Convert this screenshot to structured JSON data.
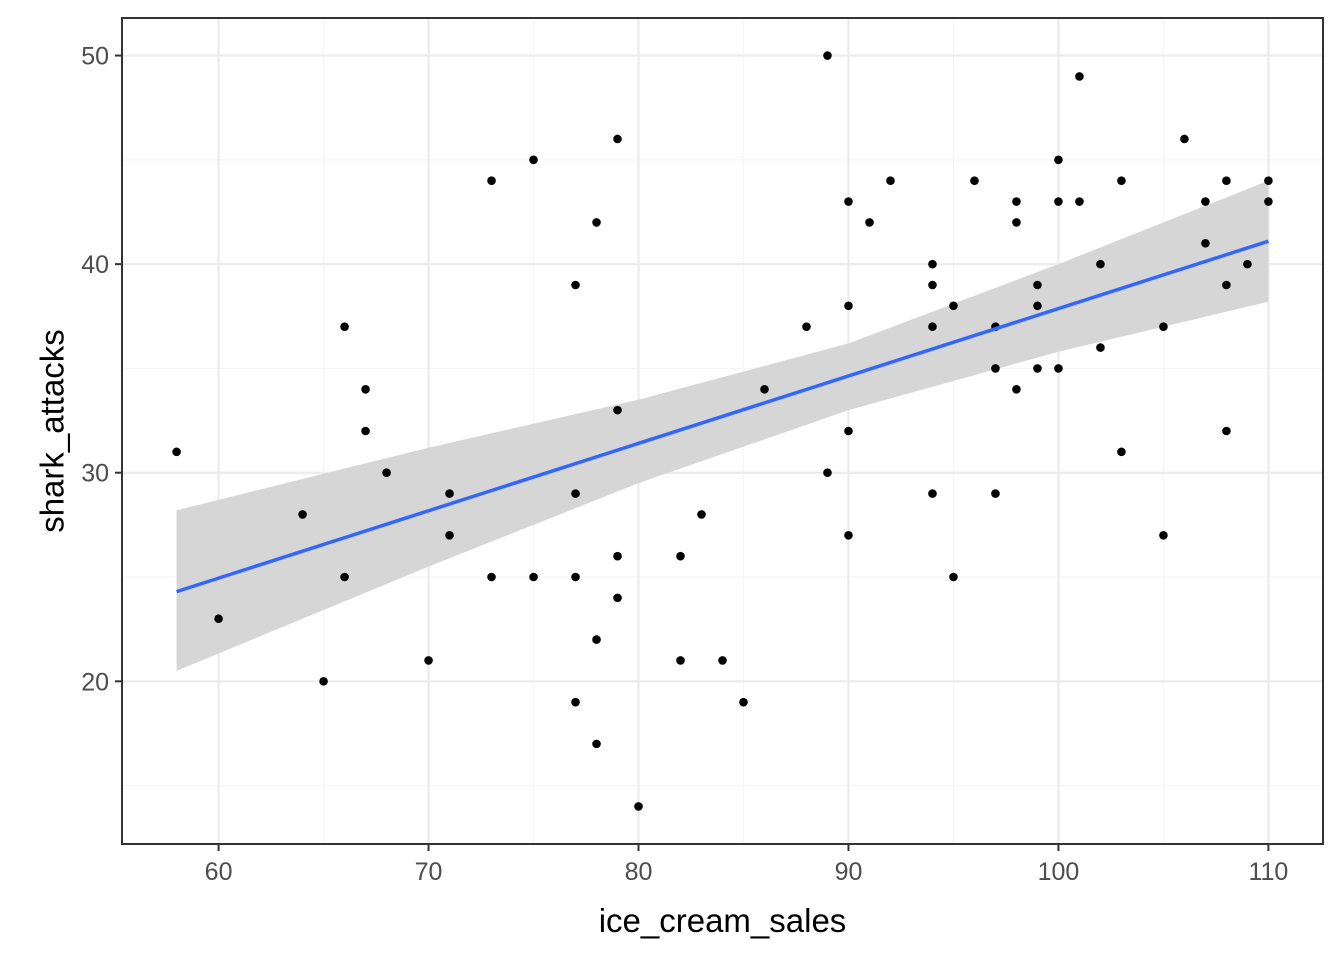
{
  "chart_data": {
    "type": "scatter",
    "xlabel": "ice_cream_sales",
    "ylabel": "shark_attacks",
    "xlim": [
      55.4,
      112.6
    ],
    "ylim": [
      12.2,
      51.8
    ],
    "x_ticks": [
      60,
      70,
      80,
      90,
      100,
      110
    ],
    "x_tick_labels": [
      "60",
      "70",
      "80",
      "90",
      "100",
      "110"
    ],
    "y_ticks": [
      20,
      30,
      40,
      50
    ],
    "y_tick_labels": [
      "20",
      "30",
      "40",
      "50"
    ],
    "grid": true,
    "points": [
      [
        58,
        31
      ],
      [
        60,
        23
      ],
      [
        64,
        28
      ],
      [
        65,
        20
      ],
      [
        66,
        37
      ],
      [
        66,
        25
      ],
      [
        67,
        34
      ],
      [
        67,
        32
      ],
      [
        68,
        30
      ],
      [
        70,
        21
      ],
      [
        71,
        29
      ],
      [
        71,
        27
      ],
      [
        73,
        44
      ],
      [
        73,
        25
      ],
      [
        75,
        45
      ],
      [
        75,
        25
      ],
      [
        77,
        39
      ],
      [
        77,
        29
      ],
      [
        77,
        25
      ],
      [
        77,
        19
      ],
      [
        78,
        42
      ],
      [
        78,
        22
      ],
      [
        78,
        17
      ],
      [
        79,
        46
      ],
      [
        79,
        33
      ],
      [
        79,
        26
      ],
      [
        79,
        24
      ],
      [
        80,
        14
      ],
      [
        82,
        26
      ],
      [
        82,
        21
      ],
      [
        83,
        28
      ],
      [
        84,
        21
      ],
      [
        85,
        19
      ],
      [
        86,
        34
      ],
      [
        88,
        37
      ],
      [
        89,
        50
      ],
      [
        89,
        30
      ],
      [
        90,
        43
      ],
      [
        90,
        38
      ],
      [
        90,
        32
      ],
      [
        90,
        27
      ],
      [
        91,
        42
      ],
      [
        92,
        44
      ],
      [
        94,
        40
      ],
      [
        94,
        39
      ],
      [
        94,
        37
      ],
      [
        94,
        29
      ],
      [
        95,
        38
      ],
      [
        95,
        25
      ],
      [
        96,
        44
      ],
      [
        97,
        37
      ],
      [
        97,
        35
      ],
      [
        97,
        29
      ],
      [
        98,
        43
      ],
      [
        98,
        42
      ],
      [
        98,
        34
      ],
      [
        99,
        39
      ],
      [
        99,
        38
      ],
      [
        99,
        35
      ],
      [
        100,
        45
      ],
      [
        100,
        43
      ],
      [
        100,
        35
      ],
      [
        101,
        49
      ],
      [
        101,
        43
      ],
      [
        102,
        40
      ],
      [
        102,
        36
      ],
      [
        103,
        44
      ],
      [
        103,
        31
      ],
      [
        105,
        37
      ],
      [
        105,
        27
      ],
      [
        106,
        46
      ],
      [
        107,
        43
      ],
      [
        107,
        41
      ],
      [
        108,
        44
      ],
      [
        108,
        39
      ],
      [
        108,
        32
      ],
      [
        109,
        40
      ],
      [
        110,
        44
      ],
      [
        110,
        43
      ]
    ],
    "fit": {
      "method": "lm",
      "line": [
        [
          58,
          24.3
        ],
        [
          110,
          41.1
        ]
      ],
      "ci_band": [
        {
          "x": 58,
          "lower": 20.5,
          "upper": 28.2
        },
        {
          "x": 70,
          "lower": 25.5,
          "upper": 31.2
        },
        {
          "x": 80,
          "lower": 29.5,
          "upper": 33.5
        },
        {
          "x": 90,
          "lower": 33.0,
          "upper": 36.2
        },
        {
          "x": 100,
          "lower": 35.8,
          "upper": 40.0
        },
        {
          "x": 110,
          "lower": 38.2,
          "upper": 44.0
        }
      ],
      "line_color": "#3366FF",
      "band_color": "#d6d6d6"
    },
    "point_color": "#000000",
    "panel_border_color": "#333333",
    "grid_major_color": "#ebebeb",
    "grid_minor_color": "#f5f5f5"
  }
}
